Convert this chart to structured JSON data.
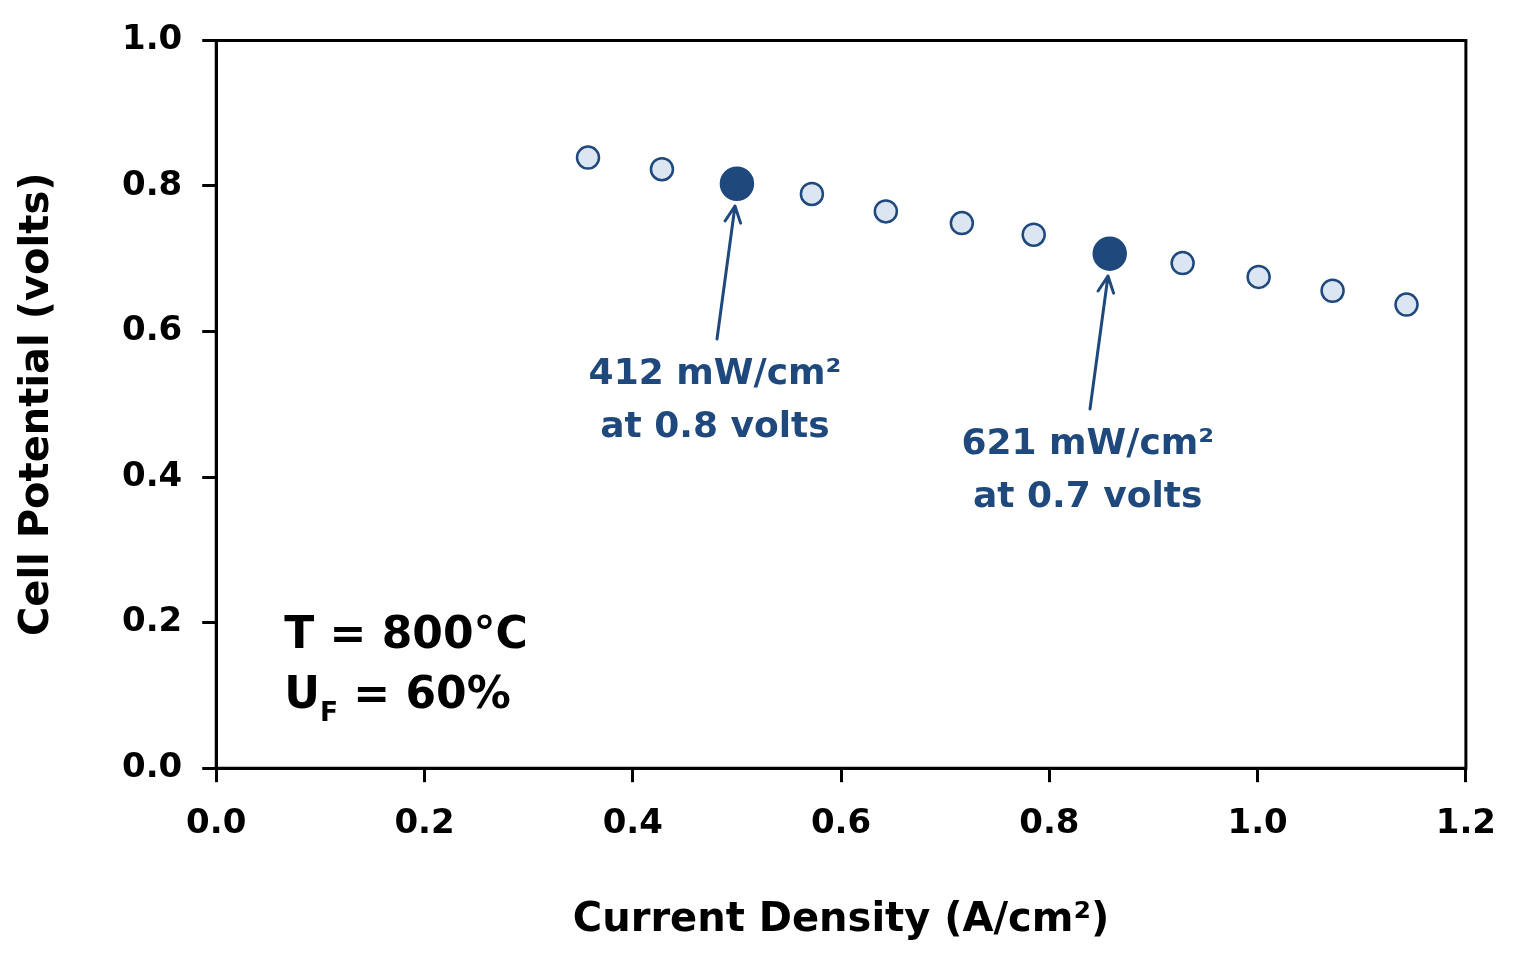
{
  "chart_data": {
    "type": "scatter",
    "xlabel": "Current Density (A/cm²)",
    "ylabel": "Cell Potential (volts)",
    "xlim": [
      0,
      1.2
    ],
    "xticks": [
      {
        "value": 0,
        "label": "0.0"
      },
      0.2,
      0.4,
      0.6,
      0.8,
      {
        "value": 1,
        "label": "1.0"
      },
      1.2
    ],
    "ylim": [
      0,
      1
    ],
    "yticks": [
      {
        "value": 0,
        "label": "0.0"
      },
      0.2,
      0.4,
      0.6,
      0.8,
      {
        "value": 1,
        "label": "1.0"
      }
    ],
    "grid": false,
    "legend": false,
    "marker": "circle",
    "series": [
      {
        "color": "#dce6f2",
        "x": [
          0.357,
          0.428,
          0.572,
          0.643,
          0.716,
          0.785,
          0.928,
          1.001,
          1.072,
          1.143
        ],
        "values": [
          0.839,
          0.823,
          0.789,
          0.765,
          0.749,
          0.733,
          0.694,
          0.675,
          0.656,
          0.637
        ]
      },
      {
        "color": "#1f497d",
        "x": [
          0.5,
          0.858
        ],
        "values": [
          0.803,
          0.707
        ]
      }
    ],
    "annotations": [
      "412 mW/cm²\nat 0.8 volts",
      "621 mW/cm²\nat 0.7 volts",
      "T = 800°C",
      "U$_{F}$ = 60%"
    ]
  }
}
